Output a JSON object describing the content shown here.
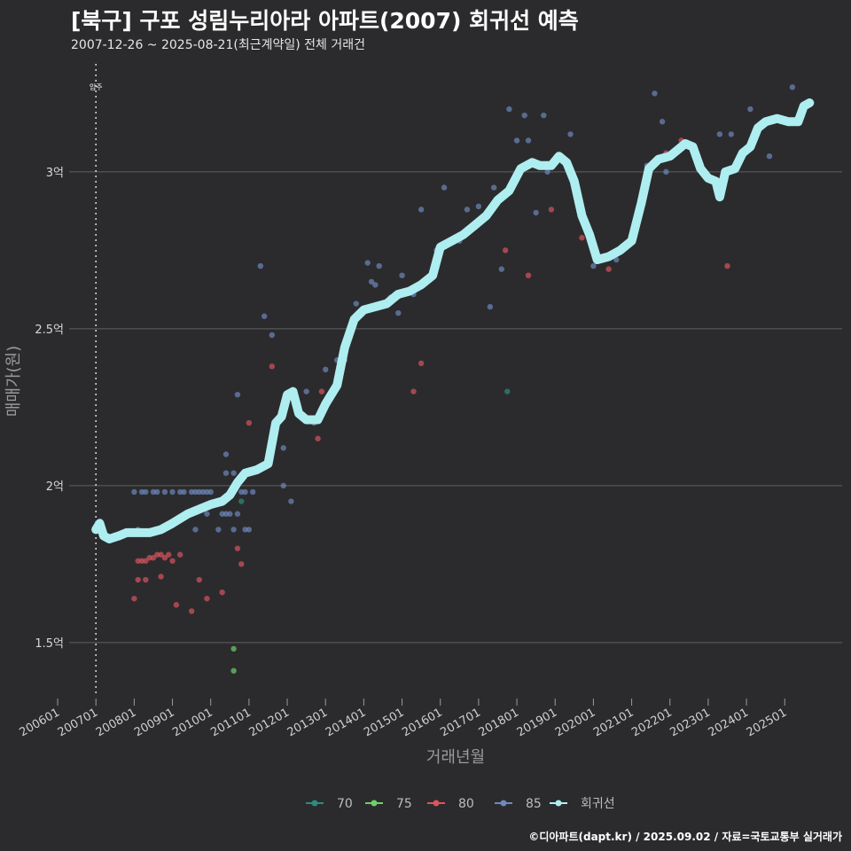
{
  "header": {
    "title": "[북구] 구포 성림누리아라 아파트(2007) 회귀선 예측",
    "subtitle": "2007-12-26 ~ 2025-08-21(최근계약일) 전체 거래건"
  },
  "footer": {
    "credit": "©디아파트(dapt.kr) / 2025.09.02 / 자료=국토교통부 실거래가"
  },
  "colors": {
    "background": "#2b2b2d",
    "grid": "#5f5f5f",
    "regression": "#aeeef0",
    "series70": "#2e8b7e",
    "series75": "#6fcf6a",
    "series80": "#d9545e",
    "series85": "#6e88bb"
  },
  "chart_data": {
    "type": "scatter",
    "title": "[북구] 구포 성림누리아라 아파트(2007) 회귀선 예측",
    "xlabel": "거래년월",
    "ylabel": "매매가(원)",
    "ylim": [
      1.33,
      3.35
    ],
    "xlim": [
      2006.3,
      2026.5
    ],
    "yticks": [
      {
        "value": 1.5,
        "label": "1.5억"
      },
      {
        "value": 2.0,
        "label": "2억"
      },
      {
        "value": 2.5,
        "label": "2.5억"
      },
      {
        "value": 3.0,
        "label": "3억"
      }
    ],
    "xticks": [
      {
        "value": 2006.0,
        "label": "200601"
      },
      {
        "value": 2007.0,
        "label": "200701"
      },
      {
        "value": 2008.0,
        "label": "200801"
      },
      {
        "value": 2009.0,
        "label": "200901"
      },
      {
        "value": 2010.0,
        "label": "201001"
      },
      {
        "value": 2011.0,
        "label": "201101"
      },
      {
        "value": 2012.0,
        "label": "201201"
      },
      {
        "value": 2013.0,
        "label": "201301"
      },
      {
        "value": 2014.0,
        "label": "201401"
      },
      {
        "value": 2015.0,
        "label": "201501"
      },
      {
        "value": 2016.0,
        "label": "201601"
      },
      {
        "value": 2017.0,
        "label": "201701"
      },
      {
        "value": 2018.0,
        "label": "201801"
      },
      {
        "value": 2019.0,
        "label": "201901"
      },
      {
        "value": 2020.0,
        "label": "202001"
      },
      {
        "value": 2021.0,
        "label": "202101"
      },
      {
        "value": 2022.0,
        "label": "202201"
      },
      {
        "value": 2023.0,
        "label": "202301"
      },
      {
        "value": 2024.0,
        "label": "202401"
      },
      {
        "value": 2025.0,
        "label": "202501"
      }
    ],
    "move_in": {
      "x": 2007.0,
      "label": "입주"
    },
    "legend": [
      {
        "key": "s70",
        "label": "70"
      },
      {
        "key": "s75",
        "label": "75"
      },
      {
        "key": "s80",
        "label": "80"
      },
      {
        "key": "s85",
        "label": "85"
      },
      {
        "key": "reg",
        "label": "회귀선"
      }
    ],
    "series": [
      {
        "name": "70",
        "key": "s70",
        "points": [
          [
            2017.75,
            2.3
          ],
          [
            2010.8,
            1.95
          ]
        ]
      },
      {
        "name": "75",
        "key": "s75",
        "points": [
          [
            2010.6,
            1.48
          ],
          [
            2010.6,
            1.41
          ]
        ]
      },
      {
        "name": "80",
        "key": "s80",
        "points": [
          [
            2008.0,
            1.64
          ],
          [
            2008.1,
            1.7
          ],
          [
            2008.3,
            1.7
          ],
          [
            2008.1,
            1.76
          ],
          [
            2008.2,
            1.76
          ],
          [
            2008.3,
            1.76
          ],
          [
            2008.4,
            1.77
          ],
          [
            2008.5,
            1.77
          ],
          [
            2008.6,
            1.78
          ],
          [
            2008.7,
            1.78
          ],
          [
            2008.8,
            1.77
          ],
          [
            2008.9,
            1.78
          ],
          [
            2009.0,
            1.76
          ],
          [
            2008.7,
            1.71
          ],
          [
            2009.1,
            1.62
          ],
          [
            2009.2,
            1.78
          ],
          [
            2009.5,
            1.6
          ],
          [
            2009.7,
            1.7
          ],
          [
            2009.9,
            1.64
          ],
          [
            2010.3,
            1.66
          ],
          [
            2010.7,
            1.8
          ],
          [
            2010.8,
            1.75
          ],
          [
            2011.0,
            2.2
          ],
          [
            2011.6,
            2.38
          ],
          [
            2012.8,
            2.15
          ],
          [
            2012.9,
            2.3
          ],
          [
            2015.3,
            2.3
          ],
          [
            2015.5,
            2.39
          ],
          [
            2017.7,
            2.75
          ],
          [
            2018.3,
            2.67
          ],
          [
            2018.9,
            2.88
          ],
          [
            2019.7,
            2.79
          ],
          [
            2020.4,
            2.69
          ],
          [
            2021.9,
            3.06
          ],
          [
            2022.3,
            3.1
          ],
          [
            2023.1,
            2.98
          ],
          [
            2023.5,
            2.7
          ]
        ]
      },
      {
        "name": "85",
        "key": "s85",
        "points": [
          [
            2008.0,
            1.98
          ],
          [
            2008.2,
            1.98
          ],
          [
            2008.3,
            1.98
          ],
          [
            2008.5,
            1.98
          ],
          [
            2008.6,
            1.98
          ],
          [
            2008.8,
            1.98
          ],
          [
            2009.0,
            1.98
          ],
          [
            2009.2,
            1.98
          ],
          [
            2009.3,
            1.98
          ],
          [
            2009.5,
            1.98
          ],
          [
            2009.6,
            1.98
          ],
          [
            2009.7,
            1.98
          ],
          [
            2009.8,
            1.98
          ],
          [
            2009.9,
            1.98
          ],
          [
            2010.0,
            1.98
          ],
          [
            2008.1,
            1.86
          ],
          [
            2009.6,
            1.86
          ],
          [
            2009.9,
            1.91
          ],
          [
            2010.2,
            1.86
          ],
          [
            2010.3,
            1.91
          ],
          [
            2010.4,
            1.91
          ],
          [
            2010.5,
            1.91
          ],
          [
            2010.6,
            1.86
          ],
          [
            2010.7,
            1.91
          ],
          [
            2010.9,
            1.86
          ],
          [
            2011.0,
            1.86
          ],
          [
            2010.4,
            2.04
          ],
          [
            2010.4,
            2.1
          ],
          [
            2010.6,
            2.04
          ],
          [
            2010.7,
            2.29
          ],
          [
            2010.8,
            1.98
          ],
          [
            2010.9,
            1.98
          ],
          [
            2011.1,
            1.98
          ],
          [
            2011.3,
            2.7
          ],
          [
            2011.4,
            2.54
          ],
          [
            2011.6,
            2.48
          ],
          [
            2011.9,
            2.0
          ],
          [
            2011.9,
            2.12
          ],
          [
            2012.1,
            1.95
          ],
          [
            2012.5,
            2.3
          ],
          [
            2012.7,
            2.2
          ],
          [
            2013.0,
            2.37
          ],
          [
            2013.3,
            2.4
          ],
          [
            2013.5,
            2.4
          ],
          [
            2013.8,
            2.58
          ],
          [
            2014.1,
            2.71
          ],
          [
            2014.2,
            2.65
          ],
          [
            2014.3,
            2.64
          ],
          [
            2014.4,
            2.7
          ],
          [
            2014.7,
            2.6
          ],
          [
            2014.9,
            2.55
          ],
          [
            2015.0,
            2.67
          ],
          [
            2015.3,
            2.61
          ],
          [
            2015.5,
            2.88
          ],
          [
            2015.9,
            2.75
          ],
          [
            2016.1,
            2.95
          ],
          [
            2016.5,
            2.78
          ],
          [
            2016.7,
            2.88
          ],
          [
            2017.0,
            2.89
          ],
          [
            2017.3,
            2.57
          ],
          [
            2017.4,
            2.95
          ],
          [
            2017.6,
            2.69
          ],
          [
            2017.8,
            3.2
          ],
          [
            2018.0,
            3.1
          ],
          [
            2018.2,
            3.18
          ],
          [
            2018.3,
            3.1
          ],
          [
            2018.5,
            2.87
          ],
          [
            2018.7,
            3.18
          ],
          [
            2018.8,
            3.0
          ],
          [
            2019.4,
            3.12
          ],
          [
            2020.0,
            2.7
          ],
          [
            2020.6,
            2.72
          ],
          [
            2021.0,
            2.8
          ],
          [
            2021.4,
            3.02
          ],
          [
            2021.6,
            3.25
          ],
          [
            2021.8,
            3.16
          ],
          [
            2021.9,
            3.0
          ],
          [
            2022.6,
            3.08
          ],
          [
            2023.3,
            3.12
          ],
          [
            2023.6,
            3.12
          ],
          [
            2024.1,
            3.2
          ],
          [
            2024.6,
            3.05
          ],
          [
            2025.2,
            3.27
          ],
          [
            2025.5,
            3.2
          ]
        ]
      }
    ],
    "regression": [
      [
        2007.0,
        1.86
      ],
      [
        2007.1,
        1.88
      ],
      [
        2007.2,
        1.84
      ],
      [
        2007.35,
        1.83
      ],
      [
        2007.6,
        1.84
      ],
      [
        2007.8,
        1.85
      ],
      [
        2008.1,
        1.85
      ],
      [
        2008.4,
        1.85
      ],
      [
        2008.7,
        1.86
      ],
      [
        2009.0,
        1.88
      ],
      [
        2009.4,
        1.91
      ],
      [
        2009.8,
        1.93
      ],
      [
        2010.0,
        1.94
      ],
      [
        2010.3,
        1.95
      ],
      [
        2010.5,
        1.97
      ],
      [
        2010.7,
        2.01
      ],
      [
        2010.9,
        2.04
      ],
      [
        2011.2,
        2.05
      ],
      [
        2011.5,
        2.07
      ],
      [
        2011.7,
        2.2
      ],
      [
        2011.85,
        2.22
      ],
      [
        2012.0,
        2.29
      ],
      [
        2012.15,
        2.3
      ],
      [
        2012.3,
        2.23
      ],
      [
        2012.5,
        2.21
      ],
      [
        2012.8,
        2.21
      ],
      [
        2013.0,
        2.26
      ],
      [
        2013.3,
        2.32
      ],
      [
        2013.5,
        2.44
      ],
      [
        2013.75,
        2.53
      ],
      [
        2014.0,
        2.56
      ],
      [
        2014.3,
        2.57
      ],
      [
        2014.6,
        2.58
      ],
      [
        2014.9,
        2.61
      ],
      [
        2015.2,
        2.62
      ],
      [
        2015.5,
        2.64
      ],
      [
        2015.8,
        2.67
      ],
      [
        2016.0,
        2.76
      ],
      [
        2016.3,
        2.78
      ],
      [
        2016.6,
        2.8
      ],
      [
        2016.9,
        2.83
      ],
      [
        2017.2,
        2.86
      ],
      [
        2017.5,
        2.91
      ],
      [
        2017.8,
        2.94
      ],
      [
        2018.1,
        3.01
      ],
      [
        2018.4,
        3.03
      ],
      [
        2018.6,
        3.02
      ],
      [
        2018.9,
        3.02
      ],
      [
        2019.1,
        3.05
      ],
      [
        2019.3,
        3.03
      ],
      [
        2019.5,
        2.97
      ],
      [
        2019.7,
        2.86
      ],
      [
        2019.9,
        2.8
      ],
      [
        2020.1,
        2.72
      ],
      [
        2020.4,
        2.73
      ],
      [
        2020.7,
        2.75
      ],
      [
        2021.0,
        2.78
      ],
      [
        2021.25,
        2.9
      ],
      [
        2021.45,
        3.01
      ],
      [
        2021.7,
        3.04
      ],
      [
        2022.0,
        3.05
      ],
      [
        2022.2,
        3.07
      ],
      [
        2022.4,
        3.09
      ],
      [
        2022.6,
        3.08
      ],
      [
        2022.8,
        3.01
      ],
      [
        2023.0,
        2.98
      ],
      [
        2023.2,
        2.97
      ],
      [
        2023.3,
        2.92
      ],
      [
        2023.45,
        3.0
      ],
      [
        2023.7,
        3.01
      ],
      [
        2023.9,
        3.06
      ],
      [
        2024.1,
        3.08
      ],
      [
        2024.3,
        3.14
      ],
      [
        2024.5,
        3.16
      ],
      [
        2024.8,
        3.17
      ],
      [
        2025.1,
        3.16
      ],
      [
        2025.35,
        3.16
      ],
      [
        2025.5,
        3.21
      ],
      [
        2025.65,
        3.22
      ]
    ]
  }
}
